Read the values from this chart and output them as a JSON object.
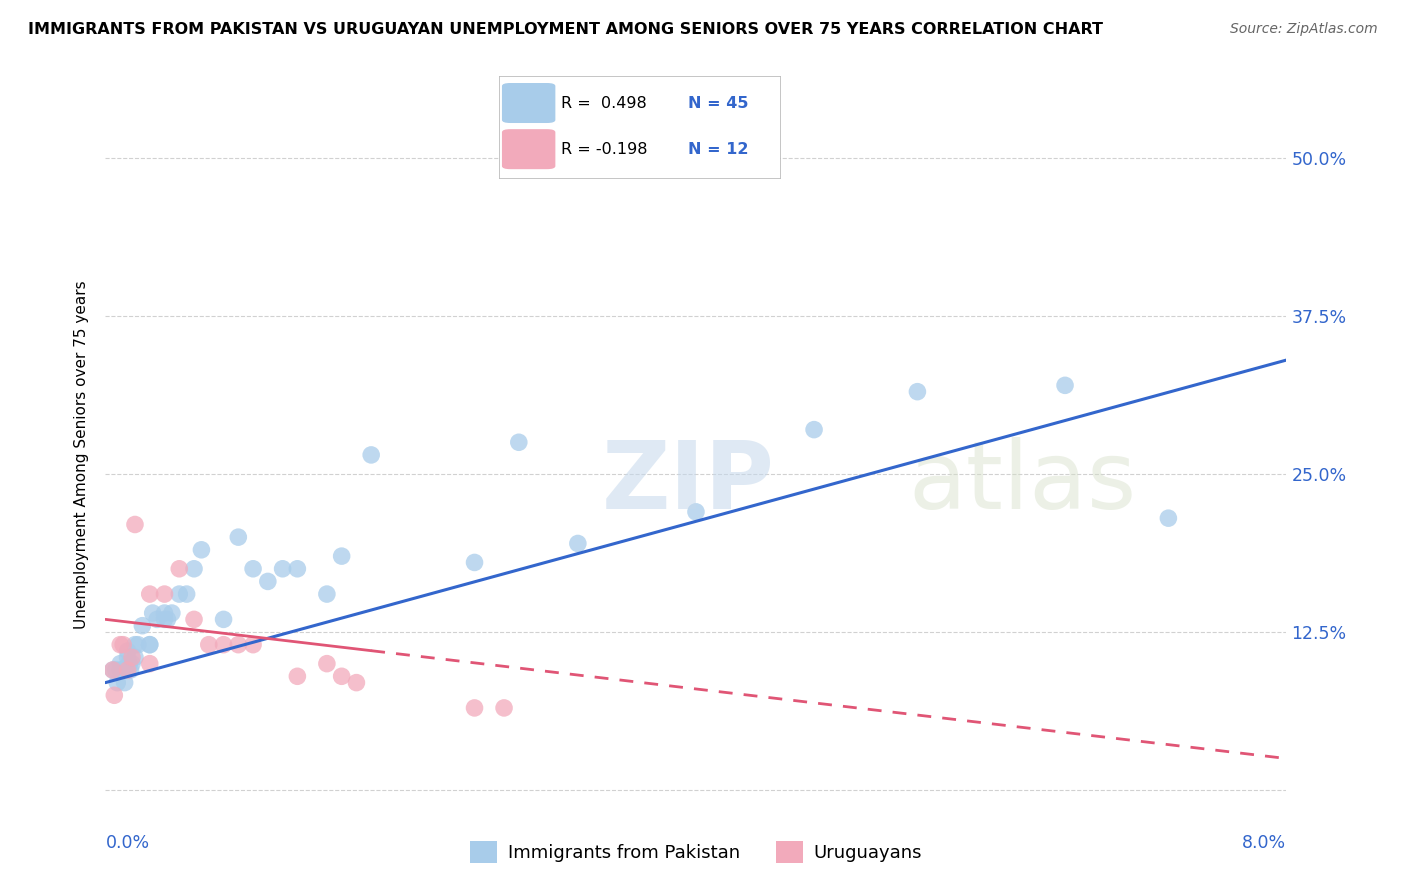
{
  "title": "IMMIGRANTS FROM PAKISTAN VS URUGUAYAN UNEMPLOYMENT AMONG SENIORS OVER 75 YEARS CORRELATION CHART",
  "source": "Source: ZipAtlas.com",
  "ylabel": "Unemployment Among Seniors over 75 years",
  "blue_color": "#A8CCEA",
  "pink_color": "#F2AABB",
  "blue_line_color": "#3366CC",
  "pink_line_color": "#E05575",
  "background_color": "#FFFFFF",
  "grid_color": "#CCCCCC",
  "xlim": [
    0.0,
    0.08
  ],
  "ylim": [
    -0.01,
    0.54
  ],
  "yticks": [
    0.0,
    0.125,
    0.25,
    0.375,
    0.5
  ],
  "ytick_labels": [
    "",
    "12.5%",
    "25.0%",
    "37.5%",
    "50.0%"
  ],
  "blue_points_x": [
    0.0005,
    0.0007,
    0.0008,
    0.001,
    0.001,
    0.0012,
    0.0013,
    0.0015,
    0.0015,
    0.0016,
    0.0017,
    0.0018,
    0.002,
    0.002,
    0.0022,
    0.0025,
    0.003,
    0.003,
    0.0032,
    0.0035,
    0.004,
    0.004,
    0.0042,
    0.0045,
    0.005,
    0.0055,
    0.006,
    0.0065,
    0.008,
    0.009,
    0.01,
    0.011,
    0.012,
    0.013,
    0.015,
    0.016,
    0.018,
    0.025,
    0.028,
    0.032,
    0.04,
    0.048,
    0.055,
    0.065,
    0.072
  ],
  "blue_points_y": [
    0.095,
    0.095,
    0.085,
    0.1,
    0.095,
    0.095,
    0.085,
    0.11,
    0.105,
    0.1,
    0.095,
    0.1,
    0.115,
    0.105,
    0.115,
    0.13,
    0.115,
    0.115,
    0.14,
    0.135,
    0.135,
    0.14,
    0.135,
    0.14,
    0.155,
    0.155,
    0.175,
    0.19,
    0.135,
    0.2,
    0.175,
    0.165,
    0.175,
    0.175,
    0.155,
    0.185,
    0.265,
    0.18,
    0.275,
    0.195,
    0.22,
    0.285,
    0.315,
    0.32,
    0.215
  ],
  "pink_points_x": [
    0.0005,
    0.0006,
    0.001,
    0.0012,
    0.0015,
    0.0018,
    0.002,
    0.003,
    0.003,
    0.004,
    0.005,
    0.006,
    0.007,
    0.008,
    0.009,
    0.01,
    0.013,
    0.015,
    0.016,
    0.017,
    0.025,
    0.027
  ],
  "pink_points_y": [
    0.095,
    0.075,
    0.115,
    0.115,
    0.095,
    0.105,
    0.21,
    0.1,
    0.155,
    0.155,
    0.175,
    0.135,
    0.115,
    0.115,
    0.115,
    0.115,
    0.09,
    0.1,
    0.09,
    0.085,
    0.065,
    0.065
  ],
  "blue_line_x0": 0.0,
  "blue_line_x1": 0.08,
  "blue_line_y0": 0.085,
  "blue_line_y1": 0.34,
  "pink_line_solid_x0": 0.0,
  "pink_line_solid_x1": 0.018,
  "pink_line_dashed_x0": 0.018,
  "pink_line_dashed_x1": 0.08,
  "pink_line_y0": 0.135,
  "pink_line_y1": 0.025
}
